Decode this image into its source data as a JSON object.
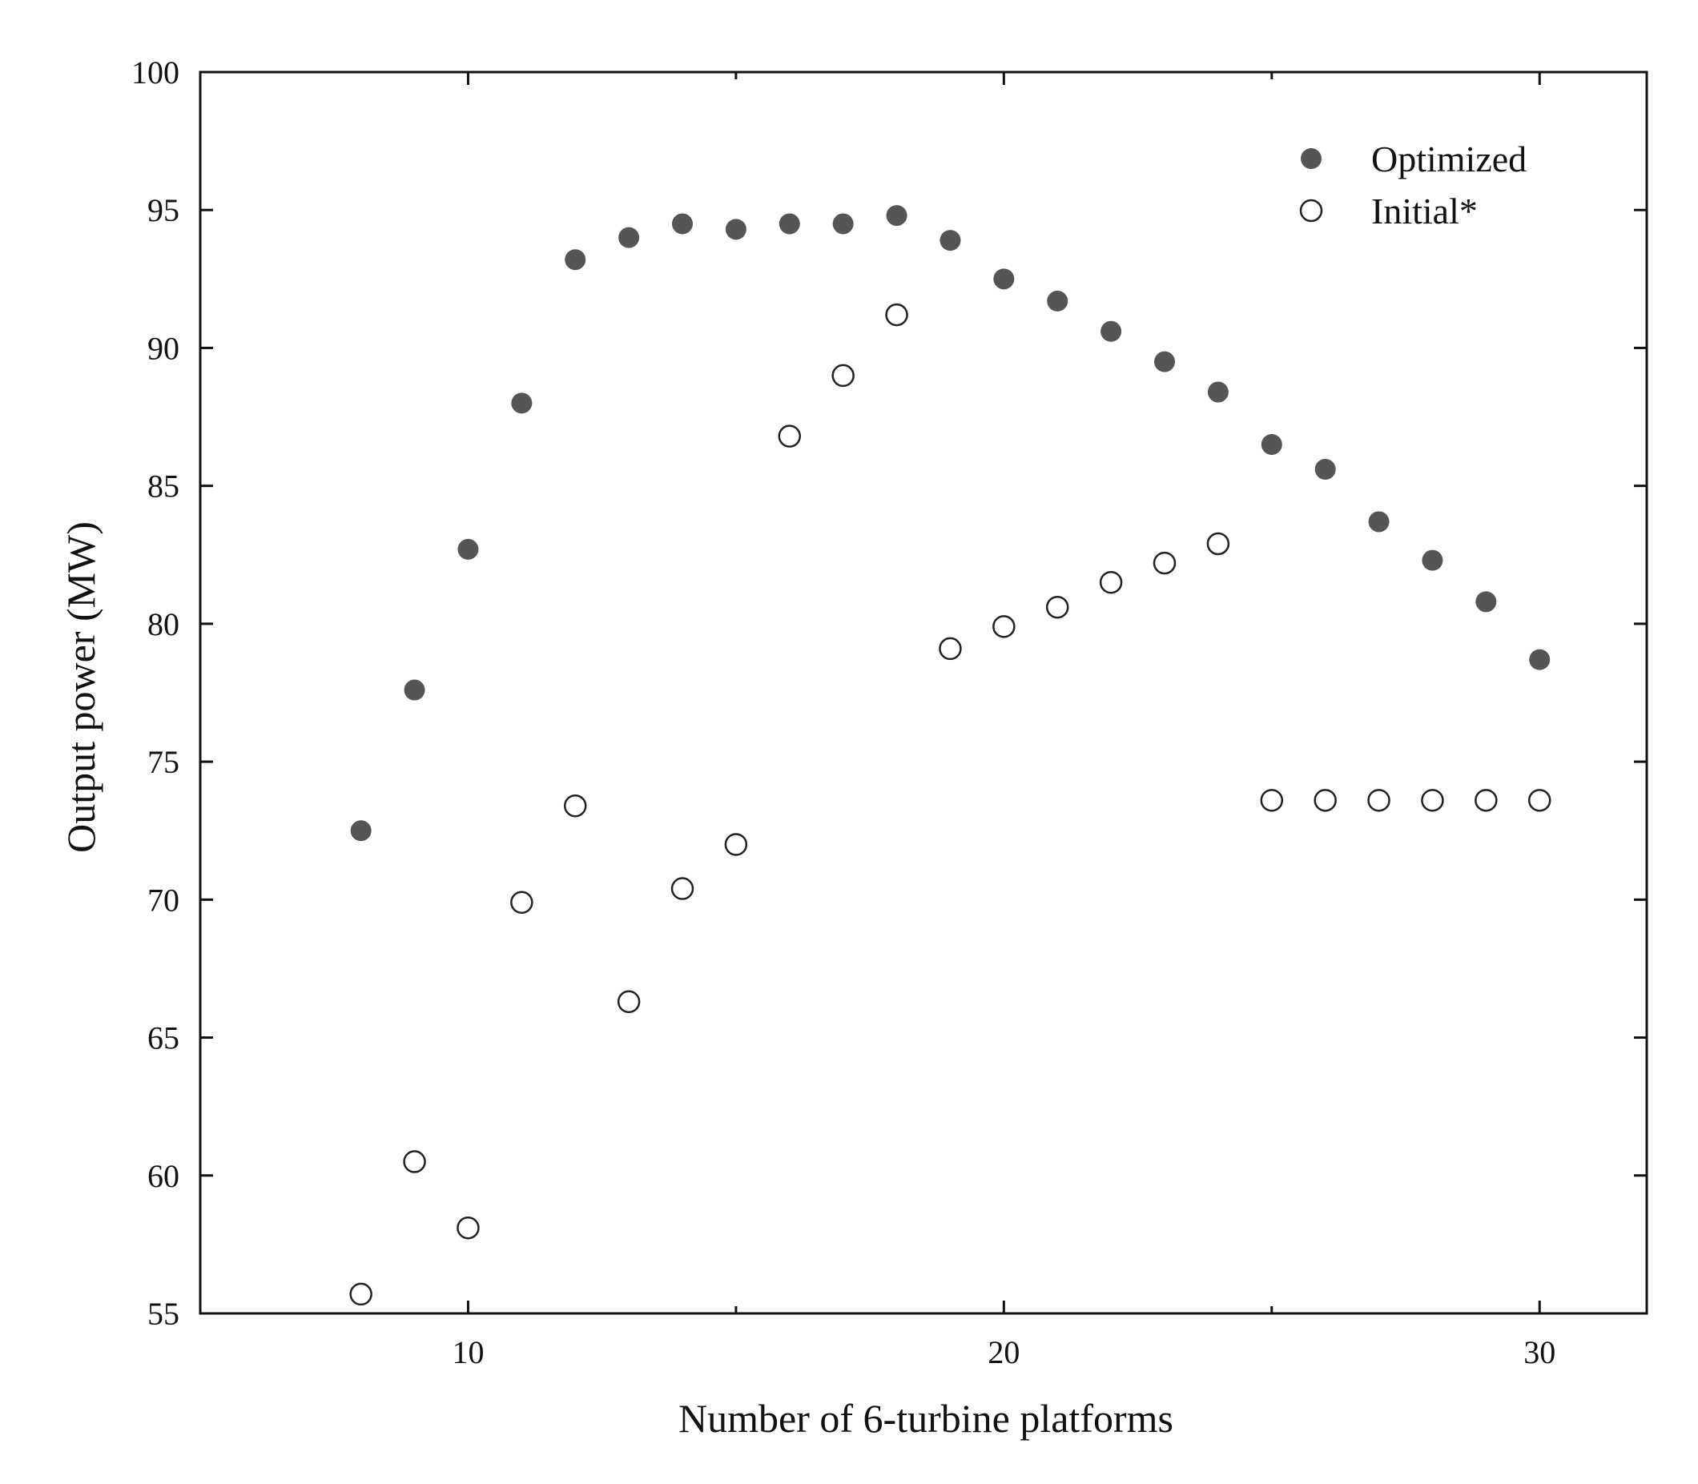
{
  "chart_data": {
    "type": "scatter",
    "title": "",
    "xlabel": "Number of 6-turbine platforms",
    "ylabel": "Output power (MW)",
    "xlim": [
      5,
      32
    ],
    "ylim": [
      55,
      100
    ],
    "x_ticks": [
      10,
      20,
      30
    ],
    "y_ticks": [
      55,
      60,
      65,
      70,
      75,
      80,
      85,
      90,
      95,
      100
    ],
    "grid": false,
    "legend_position": "top-right",
    "colors": {
      "optimized": "#555555",
      "initial_fill": "#ffffff",
      "initial_stroke": "#222222",
      "axis": "#111111"
    },
    "series": [
      {
        "name": "Optimized",
        "marker": "filled-circle",
        "x": [
          8,
          9,
          10,
          11,
          12,
          13,
          14,
          15,
          16,
          17,
          18,
          19,
          20,
          21,
          22,
          23,
          24,
          25,
          26,
          27,
          28,
          29,
          30
        ],
        "y": [
          72.5,
          77.6,
          82.7,
          88.0,
          93.2,
          94.0,
          94.5,
          94.3,
          94.5,
          94.5,
          94.8,
          93.9,
          92.5,
          91.7,
          90.6,
          89.5,
          88.4,
          86.5,
          85.6,
          83.7,
          82.3,
          80.8,
          78.7
        ]
      },
      {
        "name": "Initial*",
        "marker": "open-circle",
        "x": [
          8,
          9,
          10,
          11,
          12,
          13,
          14,
          15,
          16,
          17,
          18,
          19,
          20,
          21,
          22,
          23,
          24,
          25,
          26,
          27,
          28,
          29,
          30
        ],
        "y": [
          55.7,
          60.5,
          58.1,
          69.9,
          73.4,
          66.3,
          70.4,
          72.0,
          86.8,
          89.0,
          91.2,
          79.1,
          79.9,
          80.6,
          81.5,
          82.2,
          82.9,
          73.6,
          73.6,
          73.6,
          73.6,
          73.6,
          73.6
        ]
      }
    ]
  }
}
